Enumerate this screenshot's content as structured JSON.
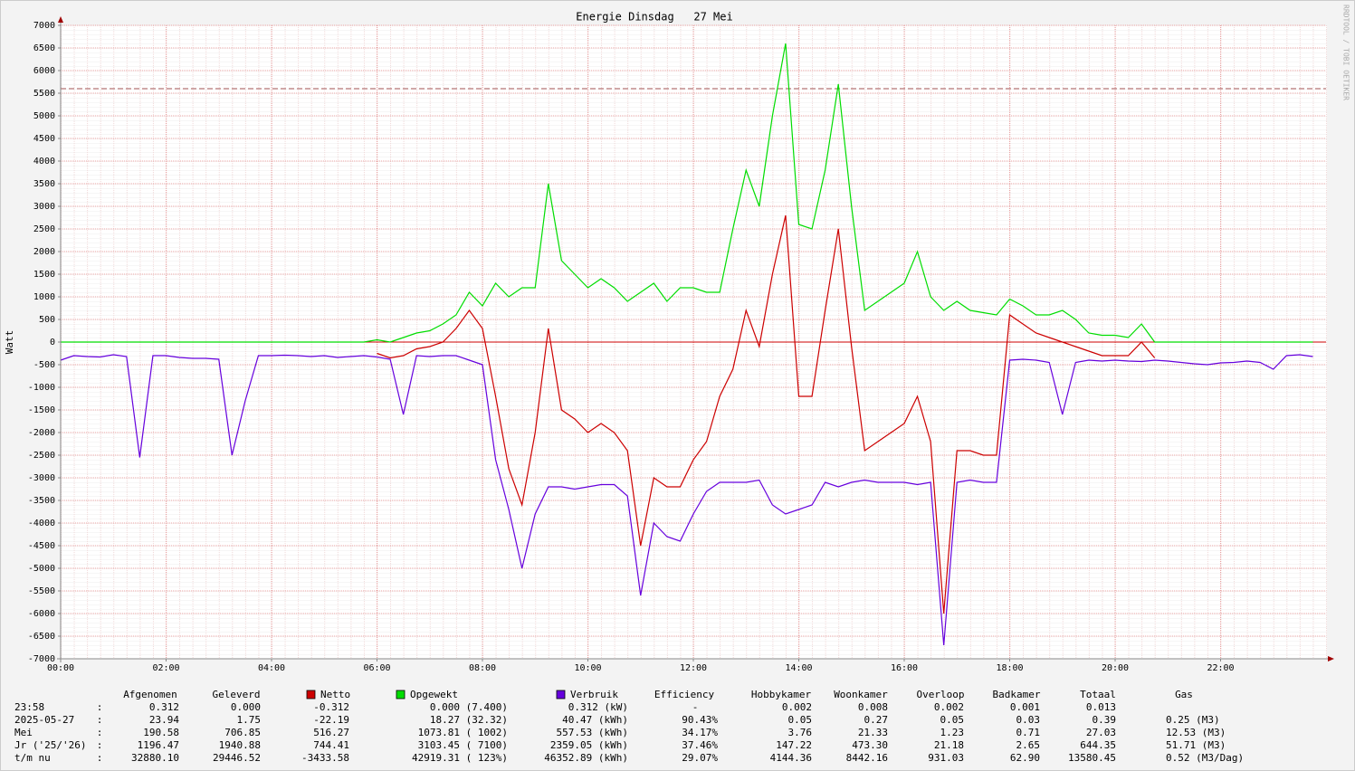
{
  "chart_data": {
    "type": "line",
    "title": "Energie Dinsdag   27 Mei",
    "y_label": "Watt",
    "watermark": "RRDTOOL / TOBI OETIKER",
    "xlim": [
      0,
      24
    ],
    "xticks": [
      {
        "value": 0,
        "label": "00:00"
      },
      {
        "value": 2,
        "label": "02:00"
      },
      {
        "value": 4,
        "label": "04:00"
      },
      {
        "value": 6,
        "label": "06:00"
      },
      {
        "value": 8,
        "label": "08:00"
      },
      {
        "value": 10,
        "label": "10:00"
      },
      {
        "value": 12,
        "label": "12:00"
      },
      {
        "value": 14,
        "label": "14:00"
      },
      {
        "value": 16,
        "label": "16:00"
      },
      {
        "value": 18,
        "label": "18:00"
      },
      {
        "value": 20,
        "label": "20:00"
      },
      {
        "value": 22,
        "label": "22:00"
      }
    ],
    "ylim": [
      -7000,
      7000
    ],
    "yticks": [
      -7000,
      -6500,
      -6000,
      -5500,
      -5000,
      -4500,
      -4000,
      -3500,
      -3000,
      -2500,
      -2000,
      -1500,
      -1000,
      -500,
      0,
      500,
      1000,
      1500,
      2000,
      2500,
      3000,
      3500,
      4000,
      4500,
      5000,
      5500,
      6000,
      6500,
      7000
    ],
    "grid": true,
    "reference_line": {
      "value": 5600,
      "color": "#a05050"
    },
    "x": [
      0,
      0.25,
      0.5,
      0.75,
      1,
      1.25,
      1.5,
      1.75,
      2,
      2.25,
      2.5,
      2.75,
      3,
      3.25,
      3.5,
      3.75,
      4,
      4.25,
      4.5,
      4.75,
      5,
      5.25,
      5.5,
      5.75,
      6,
      6.25,
      6.5,
      6.75,
      7,
      7.25,
      7.5,
      7.75,
      8,
      8.25,
      8.5,
      8.75,
      9,
      9.25,
      9.5,
      9.75,
      10,
      10.25,
      10.5,
      10.75,
      11,
      11.25,
      11.5,
      11.75,
      12,
      12.25,
      12.5,
      12.75,
      13,
      13.25,
      13.5,
      13.75,
      14,
      14.25,
      14.5,
      14.75,
      15,
      15.25,
      15.5,
      15.75,
      16,
      16.25,
      16.5,
      16.75,
      17,
      17.25,
      17.5,
      17.75,
      18,
      18.25,
      18.5,
      18.75,
      19,
      19.25,
      19.5,
      19.75,
      20,
      20.25,
      20.5,
      20.75,
      21,
      21.25,
      21.5,
      21.75,
      22,
      22.25,
      22.5,
      22.75,
      23,
      23.25,
      23.5,
      23.75
    ],
    "series": [
      {
        "name": "Netto",
        "color": "#cc0000",
        "values": [
          null,
          null,
          null,
          null,
          null,
          null,
          null,
          null,
          null,
          null,
          null,
          null,
          null,
          null,
          null,
          null,
          null,
          null,
          null,
          null,
          null,
          null,
          null,
          null,
          -250,
          -350,
          -300,
          -150,
          -100,
          0,
          300,
          700,
          300,
          -1200,
          -2800,
          -3600,
          -2000,
          300,
          -1500,
          -1700,
          -2000,
          -1800,
          -2000,
          -2400,
          -4500,
          -3000,
          -3200,
          -3200,
          -2600,
          -2200,
          -1200,
          -600,
          700,
          -100,
          1500,
          2800,
          -1200,
          -1200,
          700,
          2500,
          -100,
          -2400,
          -2200,
          -2000,
          -1800,
          -1200,
          -2200,
          -6000,
          -2400,
          -2400,
          -2500,
          -2500,
          600,
          400,
          200,
          100,
          0,
          -100,
          -200,
          -300,
          -300,
          -300,
          0,
          -350,
          null,
          null,
          null,
          null,
          null,
          null,
          null,
          null,
          null,
          null,
          null,
          null
        ]
      },
      {
        "name": "Opgewekt",
        "color": "#00dd00",
        "values": [
          0,
          0,
          0,
          0,
          0,
          0,
          0,
          0,
          0,
          0,
          0,
          0,
          0,
          0,
          0,
          0,
          0,
          0,
          0,
          0,
          0,
          0,
          0,
          0,
          50,
          0,
          100,
          200,
          250,
          400,
          600,
          1100,
          800,
          1300,
          1000,
          1200,
          1200,
          3500,
          1800,
          1500,
          1200,
          1400,
          1200,
          900,
          1100,
          1300,
          900,
          1200,
          1200,
          1100,
          1100,
          2500,
          3800,
          3000,
          5000,
          6600,
          2600,
          2500,
          3800,
          5700,
          3000,
          700,
          900,
          1100,
          1300,
          2000,
          1000,
          700,
          900,
          700,
          650,
          600,
          950,
          800,
          600,
          600,
          700,
          500,
          200,
          150,
          150,
          100,
          400,
          0,
          0,
          0,
          0,
          0,
          0,
          0,
          0,
          0,
          0,
          0,
          0,
          0
        ]
      },
      {
        "name": "Verbruik",
        "color": "#6600dd",
        "values": [
          -400,
          -300,
          -320,
          -330,
          -280,
          -320,
          -2550,
          -300,
          -300,
          -340,
          -360,
          -360,
          -380,
          -2500,
          -1300,
          -300,
          -300,
          -290,
          -300,
          -320,
          -300,
          -340,
          -320,
          -300,
          -330,
          -380,
          -1600,
          -300,
          -320,
          -300,
          -300,
          -400,
          -500,
          -2600,
          -3700,
          -5000,
          -3800,
          -3200,
          -3200,
          -3250,
          -3200,
          -3150,
          -3150,
          -3400,
          -5600,
          -4000,
          -4300,
          -4400,
          -3800,
          -3300,
          -3100,
          -3100,
          -3100,
          -3050,
          -3600,
          -3800,
          -3700,
          -3600,
          -3100,
          -3200,
          -3100,
          -3050,
          -3100,
          -3100,
          -3100,
          -3150,
          -3100,
          -6700,
          -3100,
          -3050,
          -3100,
          -3100,
          -400,
          -380,
          -400,
          -450,
          -1600,
          -450,
          -400,
          -420,
          -400,
          -420,
          -430,
          -400,
          -420,
          -450,
          -480,
          -500,
          -460,
          -450,
          -420,
          -450,
          -600,
          -300,
          -280,
          -320
        ]
      }
    ]
  },
  "table": {
    "columns": [
      "Afgenomen",
      "Geleverd",
      "Efficiency",
      "Hobbykamer",
      "Woonkamer",
      "Overloop",
      "Badkamer",
      "Totaal",
      "Gas"
    ],
    "rows": [
      [
        "23:58",
        ":",
        "0.312",
        "0.000",
        "-0.312",
        "0.000 (7.400)",
        "0.312 (kW)",
        "-",
        "0.002",
        "0.008",
        "0.002",
        "0.001",
        "0.013",
        null
      ],
      [
        "2025-05-27",
        ":",
        "23.94",
        "1.75",
        "-22.19",
        "18.27 (32.32)",
        "40.47 (kWh)",
        "90.43%",
        "0.05",
        "0.27",
        "0.05",
        "0.03",
        "0.39",
        "0.25 (M3)"
      ],
      [
        "Mei",
        ":",
        "190.58",
        "706.85",
        "516.27",
        "1073.81 ( 1002)",
        "557.53 (kWh)",
        "34.17%",
        "3.76",
        "21.33",
        "1.23",
        "0.71",
        "27.03",
        "12.53 (M3)"
      ],
      [
        "Jr ('25/'26)",
        ":",
        "1196.47",
        "1940.88",
        "744.41",
        "3103.45 ( 7100)",
        "2359.05 (kWh)",
        "37.46%",
        "147.22",
        "473.30",
        "21.18",
        "2.65",
        "644.35",
        "51.71 (M3)"
      ],
      [
        "t/m nu",
        ":",
        "32880.10",
        "29446.52",
        "-3433.58",
        "42919.31 ( 123%)",
        "46352.89 (kWh)",
        "29.07%",
        "4144.36",
        "8442.16",
        "931.03",
        "62.90",
        "13580.45",
        "0.52 (M3/Dag)"
      ]
    ]
  }
}
